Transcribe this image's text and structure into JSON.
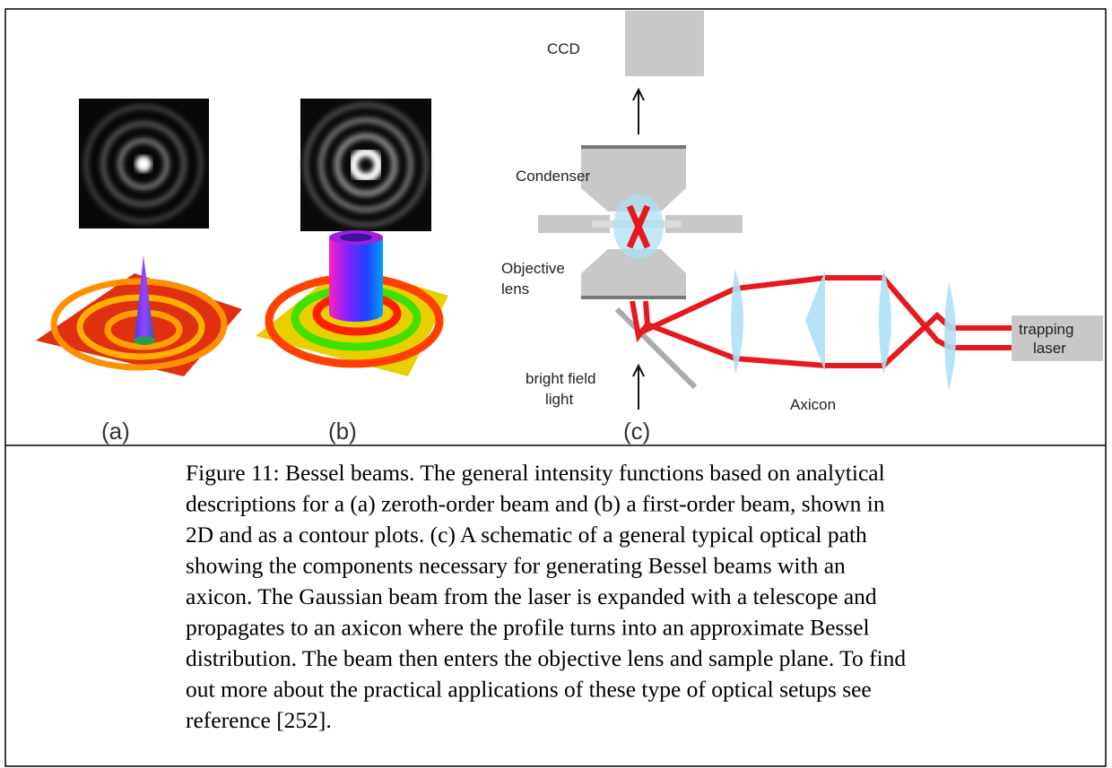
{
  "figure": {
    "panels": {
      "a": "(a)",
      "b": "(b)",
      "c": "(c)"
    },
    "labels": {
      "ccd": "CCD",
      "condenser": "Condenser",
      "objective": [
        "Objective",
        "lens"
      ],
      "bright_field": [
        "bright field",
        "light"
      ],
      "axicon": "Axicon",
      "trapping_laser": [
        "trapping",
        "laser"
      ]
    }
  },
  "caption": {
    "lines": [
      "Figure 11: Bessel beams. The general intensity functions based on analytical",
      "descriptions for a (a) zeroth-order beam and (b) a first-order beam, shown in",
      "2D and as a contour plots. (c) A schematic of a general typical optical path",
      "showing the components necessary for generating Bessel beams with an",
      "axicon. The Gaussian beam from the laser is expanded with a telescope and",
      "propagates to an axicon where the profile turns into an approximate Bessel",
      "distribution. The beam then enters the objective lens and sample plane. To find",
      "out more about the practical applications of these type of optical setups see",
      "reference  [252]."
    ]
  }
}
